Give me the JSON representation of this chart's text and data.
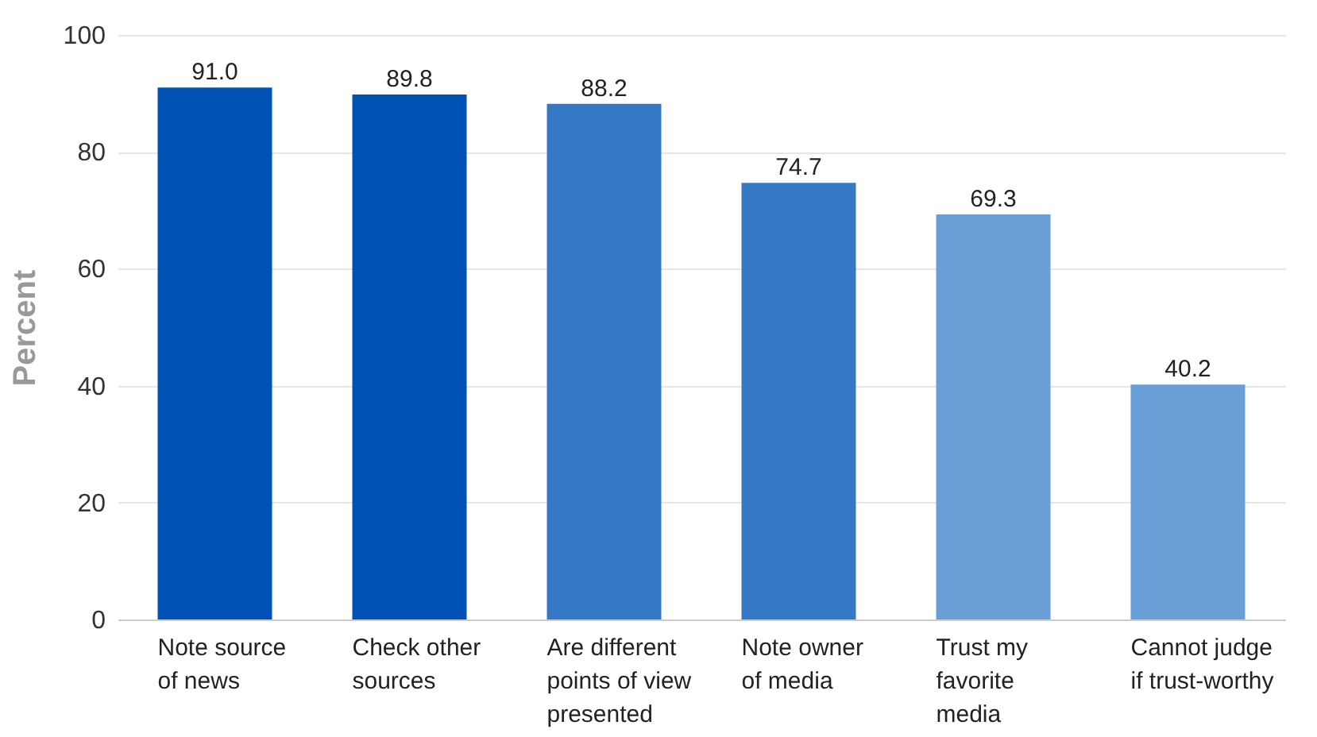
{
  "chart_data": {
    "type": "bar",
    "ylabel": "Percent",
    "categories": [
      "Note source\nof news",
      "Check other\nsources",
      "Are different\npoints of view\npresented",
      "Note owner\nof media",
      "Trust my\nfavorite\nmedia",
      "Cannot judge\nif trust-worthy"
    ],
    "values": [
      91.0,
      89.8,
      88.2,
      74.7,
      69.3,
      40.2
    ],
    "colors": [
      "#0052b4",
      "#0052b4",
      "#3578c6",
      "#3578c6",
      "#6a9ed6",
      "#6a9ed6"
    ],
    "value_labels": [
      "91.0",
      "89.8",
      "88.2",
      "74.7",
      "69.3",
      "40.2"
    ],
    "ylim": [
      0,
      100
    ],
    "yticks": [
      0,
      20,
      40,
      60,
      80,
      100
    ],
    "grid": "y"
  }
}
